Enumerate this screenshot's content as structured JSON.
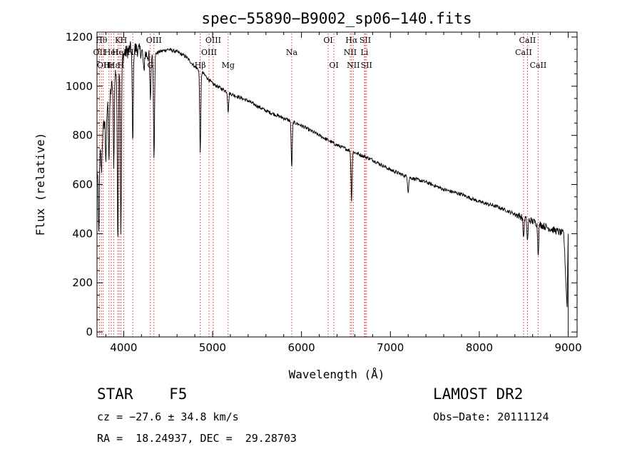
{
  "chart_data": {
    "type": "line",
    "title": "spec−55890−B9002_sp06−140.fits",
    "xlabel": "Wavelength (Å)",
    "ylabel": "Flux (relative)",
    "xlim": [
      3700,
      9100
    ],
    "ylim": [
      -20,
      1220
    ],
    "x_ticks": [
      4000,
      5000,
      6000,
      7000,
      8000,
      9000
    ],
    "y_ticks": [
      0,
      200,
      400,
      600,
      800,
      1000,
      1200
    ],
    "continuum": [
      [
        3700,
        650
      ],
      [
        3800,
        900
      ],
      [
        3900,
        1050
      ],
      [
        4000,
        1130
      ],
      [
        4100,
        1160
      ],
      [
        4200,
        1140
      ],
      [
        4300,
        1120
      ],
      [
        4400,
        1140
      ],
      [
        4500,
        1150
      ],
      [
        4600,
        1140
      ],
      [
        4700,
        1120
      ],
      [
        4800,
        1080
      ],
      [
        4900,
        1050
      ],
      [
        5000,
        1010
      ],
      [
        5200,
        970
      ],
      [
        5400,
        940
      ],
      [
        5600,
        900
      ],
      [
        5800,
        870
      ],
      [
        6000,
        840
      ],
      [
        6200,
        800
      ],
      [
        6400,
        760
      ],
      [
        6600,
        730
      ],
      [
        6800,
        700
      ],
      [
        7000,
        660
      ],
      [
        7200,
        630
      ],
      [
        7400,
        610
      ],
      [
        7600,
        580
      ],
      [
        7800,
        560
      ],
      [
        8000,
        530
      ],
      [
        8200,
        510
      ],
      [
        8400,
        480
      ],
      [
        8600,
        450
      ],
      [
        8800,
        420
      ],
      [
        8950,
        400
      ],
      [
        9000,
        0
      ]
    ],
    "absorption_lines": [
      {
        "x": 3720,
        "depth": 300
      },
      {
        "x": 3750,
        "depth": 120
      },
      {
        "x": 3800,
        "depth": 200
      },
      {
        "x": 3835,
        "depth": 250
      },
      {
        "x": 3889,
        "depth": 350
      },
      {
        "x": 3934,
        "depth": 700
      },
      {
        "x": 3969,
        "depth": 700
      },
      {
        "x": 4102,
        "depth": 400
      },
      {
        "x": 4226,
        "depth": 80
      },
      {
        "x": 4300,
        "depth": 180
      },
      {
        "x": 4341,
        "depth": 420
      },
      {
        "x": 4861,
        "depth": 330
      },
      {
        "x": 5175,
        "depth": 80
      },
      {
        "x": 5890,
        "depth": 190
      },
      {
        "x": 6563,
        "depth": 200
      },
      {
        "x": 7200,
        "depth": 60
      },
      {
        "x": 8498,
        "depth": 80
      },
      {
        "x": 8542,
        "depth": 90
      },
      {
        "x": 8662,
        "depth": 120
      }
    ],
    "line_markers": [
      {
        "x": 3727,
        "label": "OII",
        "row": 2
      },
      {
        "x": 3750,
        "label": "Hθ",
        "row": 1
      },
      {
        "x": 3770,
        "label": "OII",
        "row": 3
      },
      {
        "x": 3835,
        "label": "Hε",
        "row": 3
      },
      {
        "x": 3860,
        "label": "HeI",
        "row": 2
      },
      {
        "x": 3889,
        "label": "Hε",
        "row": 3
      },
      {
        "x": 3934,
        "label": "K",
        "row": 1
      },
      {
        "x": 3950,
        "label": "HeI",
        "row": 2
      },
      {
        "x": 3969,
        "label": "H",
        "row": 3
      },
      {
        "x": 4000,
        "label": "H",
        "row": 1
      },
      {
        "x": 4102,
        "label": "Hδ",
        "row": 2
      },
      {
        "x": 4300,
        "label": "G",
        "row": 3
      },
      {
        "x": 4340,
        "label": "OIII",
        "row": 1
      },
      {
        "x": 4861,
        "label": "Hβ",
        "row": 3
      },
      {
        "x": 4960,
        "label": "OIII",
        "row": 2
      },
      {
        "x": 5007,
        "label": "OIII",
        "row": 1
      },
      {
        "x": 5175,
        "label": "Mg",
        "row": 3
      },
      {
        "x": 5890,
        "label": "Na",
        "row": 2
      },
      {
        "x": 6300,
        "label": "OI",
        "row": 1
      },
      {
        "x": 6364,
        "label": "OI",
        "row": 3
      },
      {
        "x": 6548,
        "label": "NII",
        "row": 2
      },
      {
        "x": 6563,
        "label": "Hα",
        "row": 1
      },
      {
        "x": 6583,
        "label": "NII",
        "row": 3
      },
      {
        "x": 6708,
        "label": "Li",
        "row": 2
      },
      {
        "x": 6717,
        "label": "SII",
        "row": 1
      },
      {
        "x": 6731,
        "label": "SII",
        "row": 3
      },
      {
        "x": 8498,
        "label": "CaII",
        "row": 2
      },
      {
        "x": 8542,
        "label": "CaII",
        "row": 1
      },
      {
        "x": 8662,
        "label": "CaII",
        "row": 3
      }
    ],
    "colors": {
      "spectrum": "#000000",
      "markers": "#e03030",
      "axes": "#000000"
    }
  },
  "footer": {
    "object_class": "STAR",
    "subclass": "F5",
    "survey": "LAMOST DR2",
    "cz": "cz = −27.6 ± 34.8 km/s",
    "obs_date": "Obs−Date: 20111124",
    "coords": "RA =  18.24937, DEC =  29.28703"
  }
}
